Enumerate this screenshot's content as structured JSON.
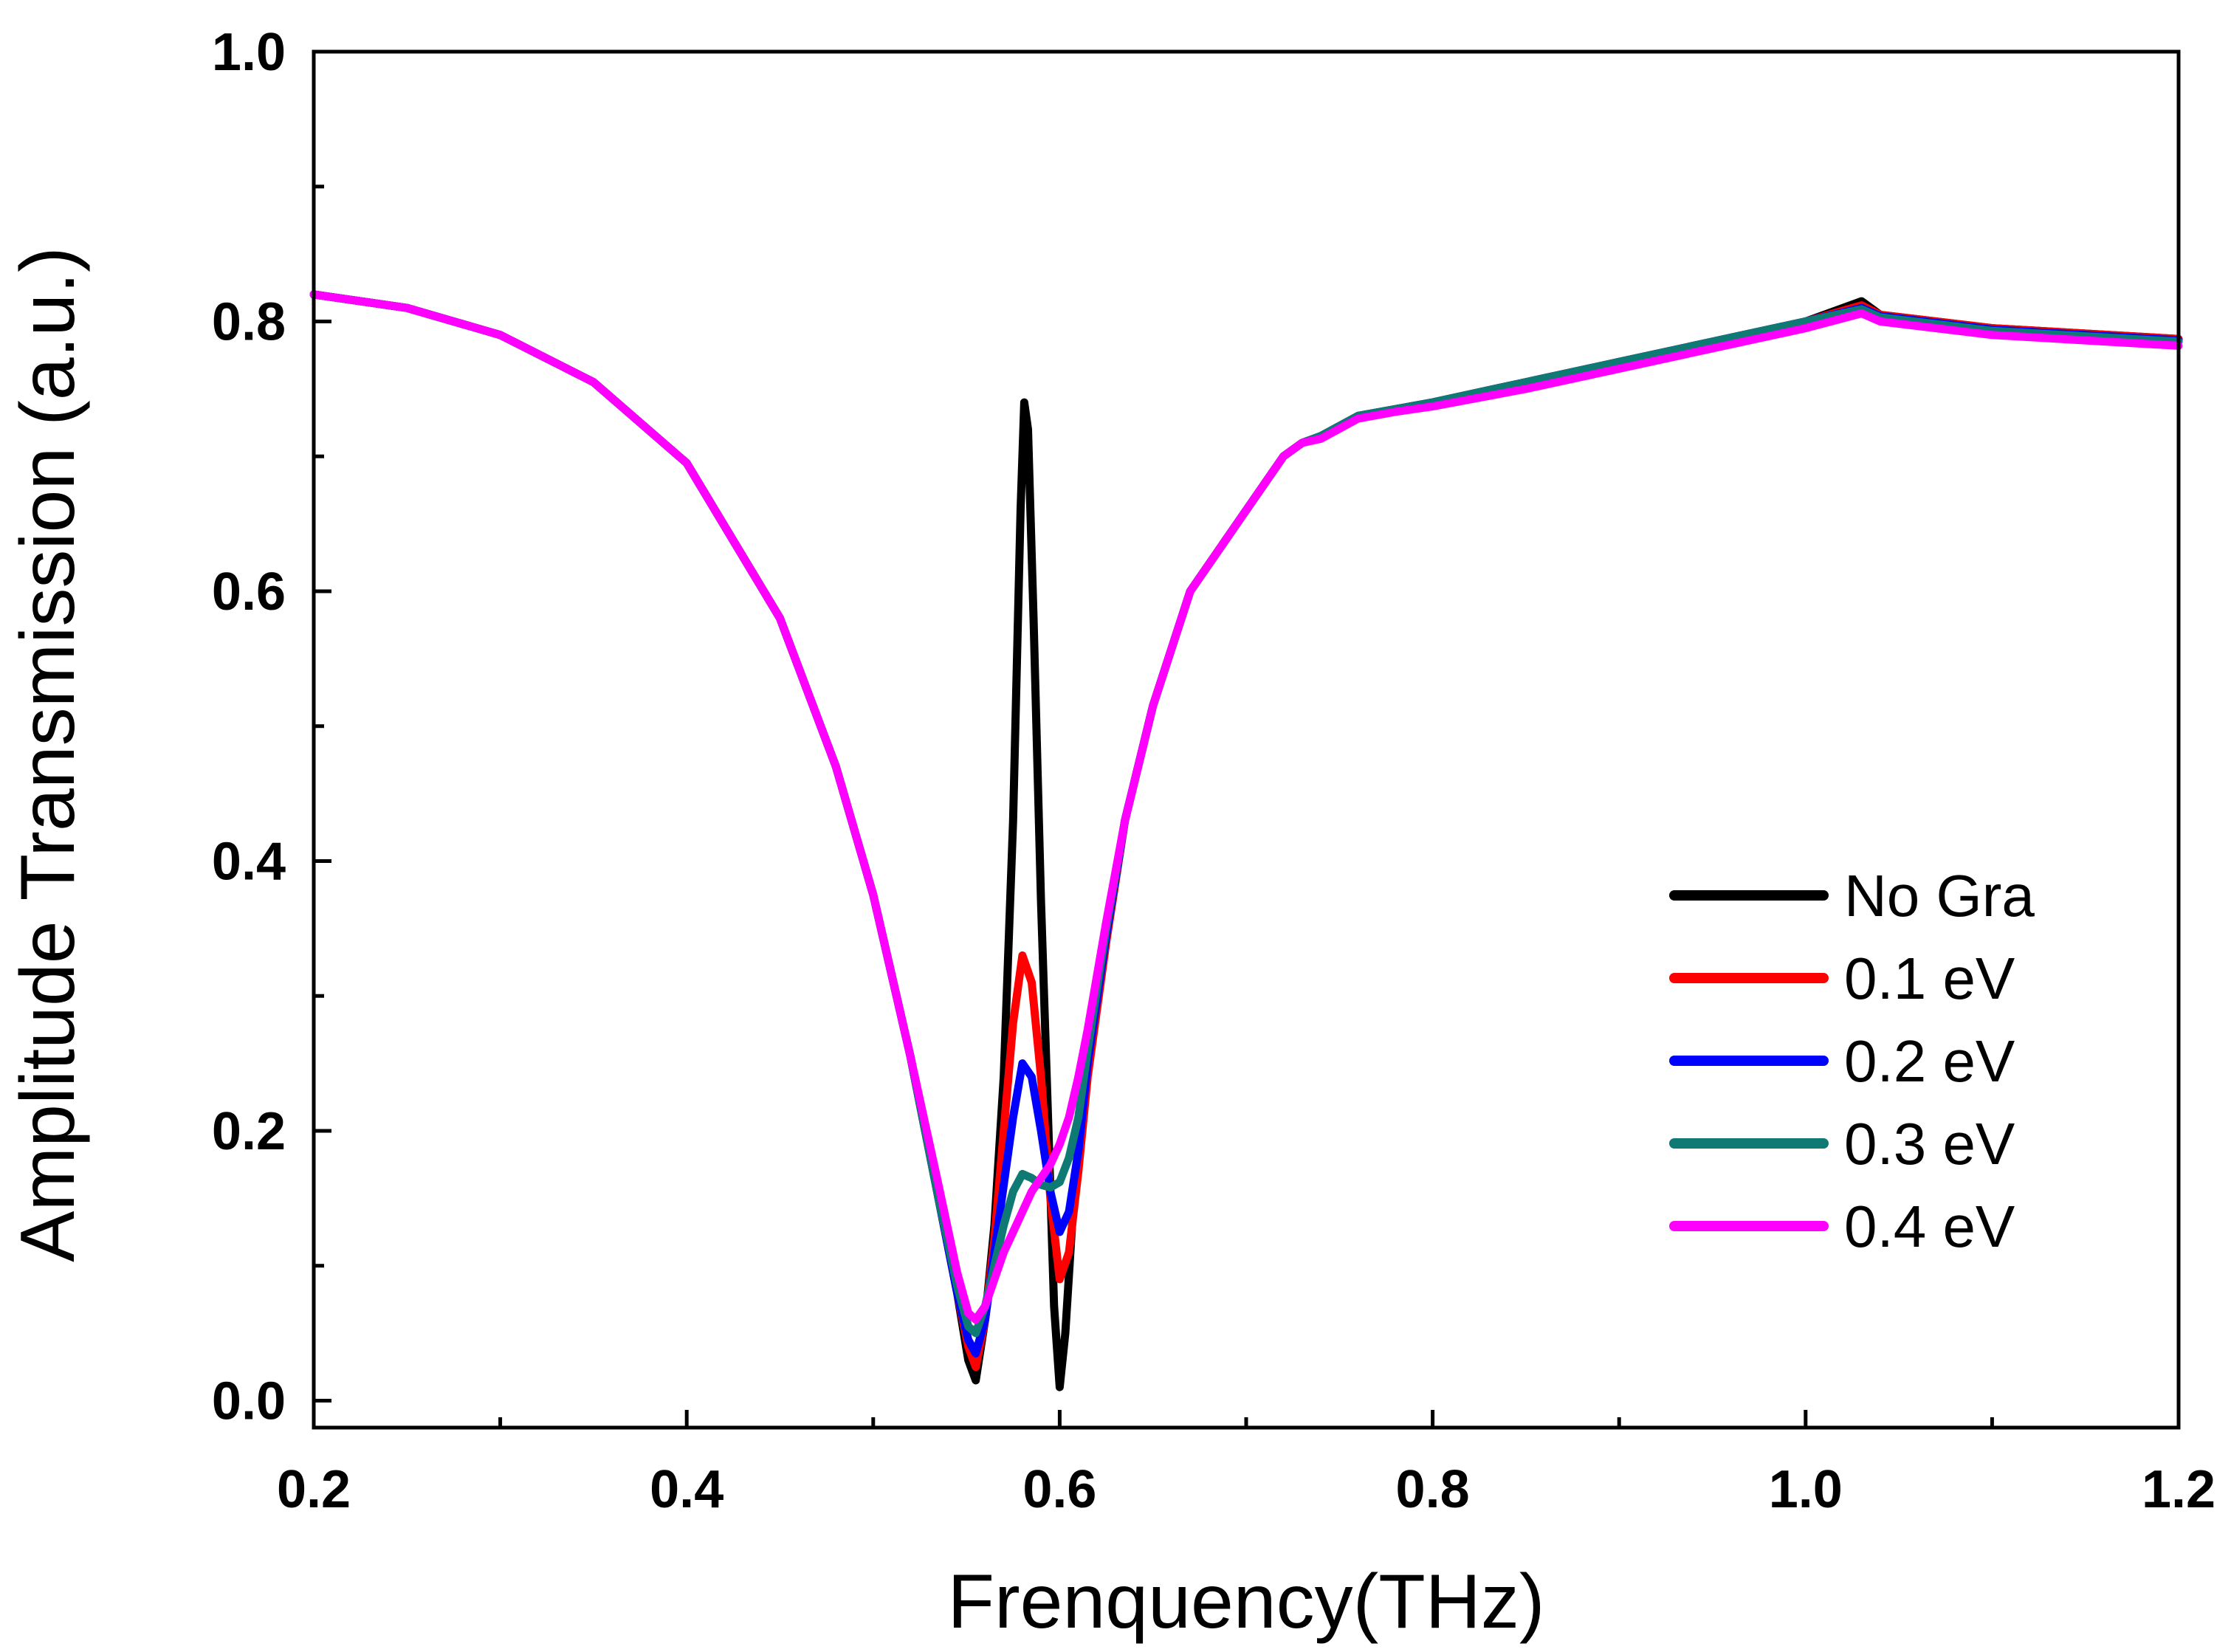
{
  "chart_data": {
    "type": "line",
    "title": "",
    "xlabel": "Frenquency(THz)",
    "ylabel": "Amplitude Transmission (a.u.)",
    "xlim": [
      0.2,
      1.2
    ],
    "ylim": [
      -0.02,
      1.0
    ],
    "x_major_ticks": [
      0.2,
      0.4,
      0.6,
      0.8,
      1.0,
      1.2
    ],
    "x_tick_labels": [
      "0.2",
      "0.4",
      "0.6",
      "0.8",
      "1.0",
      "1.2"
    ],
    "x_minor_ticks": [
      0.3,
      0.5,
      0.7,
      0.9,
      1.1
    ],
    "y_major_ticks": [
      0.0,
      0.2,
      0.4,
      0.6,
      0.8,
      1.0
    ],
    "y_tick_labels": [
      "0.0",
      "0.2",
      "0.4",
      "0.6",
      "0.8",
      "1.0"
    ],
    "y_minor_ticks": [
      0.1,
      0.3,
      0.5,
      0.7,
      0.9
    ],
    "grid": false,
    "legend_position": "bottom-right",
    "series": [
      {
        "name": "No Gra",
        "color": "#000000",
        "x": [
          0.2,
          0.25,
          0.3,
          0.35,
          0.4,
          0.45,
          0.48,
          0.5,
          0.52,
          0.535,
          0.545,
          0.551,
          0.555,
          0.56,
          0.565,
          0.57,
          0.575,
          0.579,
          0.581,
          0.583,
          0.586,
          0.59,
          0.594,
          0.597,
          0.6,
          0.603,
          0.608,
          0.615,
          0.625,
          0.635,
          0.65,
          0.67,
          0.7,
          0.72,
          0.73,
          0.74,
          0.76,
          0.78,
          0.8,
          0.85,
          0.9,
          0.95,
          1.0,
          1.03,
          1.04,
          1.1,
          1.2
        ],
        "values": [
          0.82,
          0.81,
          0.79,
          0.755,
          0.695,
          0.58,
          0.47,
          0.375,
          0.255,
          0.15,
          0.08,
          0.03,
          0.015,
          0.06,
          0.13,
          0.24,
          0.43,
          0.66,
          0.74,
          0.72,
          0.58,
          0.37,
          0.2,
          0.07,
          0.01,
          0.05,
          0.16,
          0.25,
          0.35,
          0.43,
          0.515,
          0.6,
          0.66,
          0.7,
          0.71,
          0.715,
          0.73,
          0.735,
          0.74,
          0.755,
          0.77,
          0.785,
          0.8,
          0.815,
          0.805,
          0.795,
          0.787
        ]
      },
      {
        "name": "0.1 eV",
        "color": "#ff0000",
        "x": [
          0.2,
          0.25,
          0.3,
          0.35,
          0.4,
          0.45,
          0.48,
          0.5,
          0.52,
          0.535,
          0.545,
          0.551,
          0.555,
          0.56,
          0.565,
          0.57,
          0.575,
          0.58,
          0.585,
          0.59,
          0.595,
          0.6,
          0.605,
          0.61,
          0.615,
          0.625,
          0.635,
          0.65,
          0.67,
          0.7,
          0.72,
          0.73,
          0.74,
          0.76,
          0.78,
          0.8,
          0.85,
          0.9,
          0.95,
          1.0,
          1.03,
          1.04,
          1.1,
          1.2
        ],
        "values": [
          0.82,
          0.81,
          0.79,
          0.755,
          0.695,
          0.58,
          0.47,
          0.375,
          0.255,
          0.15,
          0.08,
          0.04,
          0.025,
          0.06,
          0.12,
          0.2,
          0.28,
          0.33,
          0.31,
          0.24,
          0.15,
          0.09,
          0.11,
          0.17,
          0.24,
          0.34,
          0.43,
          0.515,
          0.6,
          0.66,
          0.7,
          0.71,
          0.715,
          0.73,
          0.735,
          0.74,
          0.755,
          0.77,
          0.785,
          0.8,
          0.812,
          0.805,
          0.795,
          0.787
        ]
      },
      {
        "name": "0.2 eV",
        "color": "#0000ff",
        "x": [
          0.2,
          0.25,
          0.3,
          0.35,
          0.4,
          0.45,
          0.48,
          0.5,
          0.52,
          0.535,
          0.545,
          0.551,
          0.555,
          0.56,
          0.565,
          0.57,
          0.575,
          0.58,
          0.585,
          0.59,
          0.595,
          0.6,
          0.605,
          0.61,
          0.615,
          0.625,
          0.635,
          0.65,
          0.67,
          0.7,
          0.72,
          0.73,
          0.74,
          0.76,
          0.78,
          0.8,
          0.85,
          0.9,
          0.95,
          1.0,
          1.03,
          1.04,
          1.1,
          1.2
        ],
        "values": [
          0.82,
          0.81,
          0.79,
          0.755,
          0.695,
          0.58,
          0.47,
          0.375,
          0.255,
          0.15,
          0.08,
          0.045,
          0.035,
          0.06,
          0.11,
          0.16,
          0.21,
          0.25,
          0.24,
          0.2,
          0.155,
          0.125,
          0.14,
          0.185,
          0.25,
          0.345,
          0.43,
          0.515,
          0.6,
          0.66,
          0.7,
          0.71,
          0.715,
          0.73,
          0.735,
          0.74,
          0.755,
          0.77,
          0.785,
          0.8,
          0.81,
          0.804,
          0.794,
          0.786
        ]
      },
      {
        "name": "0.3 eV",
        "color": "#0e7a73",
        "x": [
          0.2,
          0.25,
          0.3,
          0.35,
          0.4,
          0.45,
          0.48,
          0.5,
          0.52,
          0.535,
          0.545,
          0.551,
          0.555,
          0.56,
          0.565,
          0.57,
          0.575,
          0.58,
          0.585,
          0.59,
          0.595,
          0.6,
          0.605,
          0.61,
          0.615,
          0.625,
          0.635,
          0.65,
          0.67,
          0.7,
          0.72,
          0.73,
          0.74,
          0.76,
          0.78,
          0.8,
          0.85,
          0.9,
          0.95,
          1.0,
          1.03,
          1.04,
          1.1,
          1.2
        ],
        "values": [
          0.82,
          0.81,
          0.79,
          0.755,
          0.695,
          0.58,
          0.47,
          0.375,
          0.255,
          0.15,
          0.085,
          0.055,
          0.05,
          0.07,
          0.1,
          0.13,
          0.155,
          0.168,
          0.165,
          0.16,
          0.158,
          0.162,
          0.18,
          0.21,
          0.26,
          0.35,
          0.43,
          0.515,
          0.6,
          0.66,
          0.7,
          0.71,
          0.715,
          0.73,
          0.735,
          0.74,
          0.755,
          0.77,
          0.785,
          0.8,
          0.809,
          0.803,
          0.793,
          0.785
        ]
      },
      {
        "name": "0.4 eV",
        "color": "#ff00ff",
        "x": [
          0.2,
          0.25,
          0.3,
          0.35,
          0.4,
          0.45,
          0.48,
          0.5,
          0.52,
          0.535,
          0.545,
          0.551,
          0.555,
          0.56,
          0.565,
          0.57,
          0.575,
          0.58,
          0.585,
          0.59,
          0.595,
          0.6,
          0.605,
          0.61,
          0.615,
          0.625,
          0.635,
          0.65,
          0.67,
          0.7,
          0.72,
          0.73,
          0.74,
          0.76,
          0.78,
          0.8,
          0.85,
          0.9,
          0.95,
          1.0,
          1.03,
          1.04,
          1.1,
          1.2
        ],
        "values": [
          0.82,
          0.81,
          0.79,
          0.755,
          0.695,
          0.58,
          0.47,
          0.375,
          0.255,
          0.16,
          0.095,
          0.065,
          0.06,
          0.07,
          0.09,
          0.11,
          0.125,
          0.14,
          0.155,
          0.165,
          0.175,
          0.19,
          0.21,
          0.24,
          0.275,
          0.355,
          0.43,
          0.515,
          0.6,
          0.66,
          0.7,
          0.71,
          0.713,
          0.728,
          0.733,
          0.737,
          0.75,
          0.765,
          0.78,
          0.795,
          0.806,
          0.8,
          0.79,
          0.782
        ]
      }
    ]
  }
}
